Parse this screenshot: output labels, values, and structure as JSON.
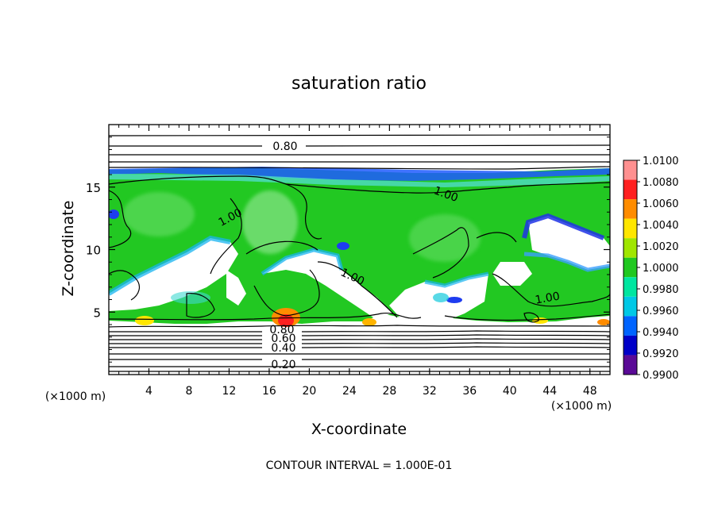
{
  "chart_data": {
    "type": "heatmap",
    "title": "saturation ratio",
    "xlabel": "X-coordinate",
    "ylabel": "Z-coordinate",
    "x_unit": "(×1000 m)",
    "z_unit": "(×1000 m)",
    "xlim": [
      0,
      50
    ],
    "ylim": [
      0,
      20
    ],
    "x_ticks": [
      4,
      8,
      12,
      16,
      20,
      24,
      28,
      32,
      36,
      40,
      44,
      48
    ],
    "y_ticks": [
      5,
      10,
      15
    ],
    "contour_interval_text": "CONTOUR INTERVAL = 1.000E-01",
    "contour_labels": [
      {
        "text": "0.80",
        "x": 17.5,
        "z": 18.2
      },
      {
        "text": "1.00",
        "x": 33.5,
        "z": 14.5
      },
      {
        "text": "1.00",
        "x": 12.5,
        "z": 12.3
      },
      {
        "text": "1.00",
        "x": 24.5,
        "z": 7.8
      },
      {
        "text": "1.00",
        "x": 43.5,
        "z": 6.0
      },
      {
        "text": "0.80",
        "x": 17.3,
        "z": 3.5
      },
      {
        "text": "0.60",
        "x": 17.5,
        "z": 2.8
      },
      {
        "text": "0.40",
        "x": 17.5,
        "z": 2.1
      },
      {
        "text": "0.20",
        "x": 17.5,
        "z": 0.9
      }
    ],
    "colorbar": {
      "labels": [
        "1.0100",
        "1.0080",
        "1.0060",
        "1.0040",
        "1.0020",
        "1.0000",
        "0.9980",
        "0.9960",
        "0.9940",
        "0.9920",
        "0.9900"
      ],
      "colors": [
        "#ff9090",
        "#ff2020",
        "#ff8c00",
        "#ffe600",
        "#a0e600",
        "#20c820",
        "#00e6a0",
        "#00c8e6",
        "#0064ff",
        "#0000c8",
        "#5a0a96"
      ],
      "min": 0.99,
      "max": 1.01
    }
  }
}
